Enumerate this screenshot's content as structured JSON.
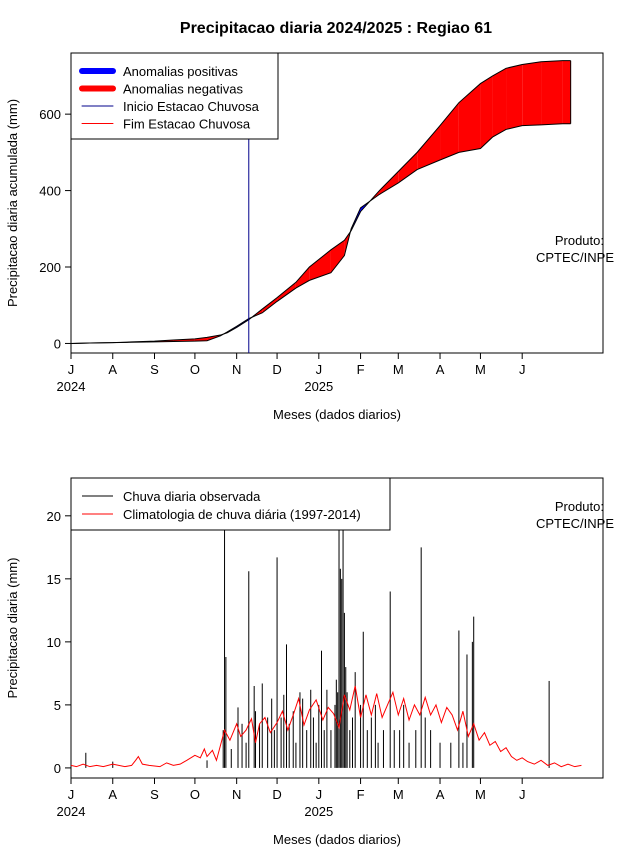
{
  "chart_data": [
    {
      "type": "area",
      "title": "Precipitacao diaria 2024/2025 : Regiao 61",
      "xlabel": "Meses (dados diarios)",
      "ylabel": "Precipitacao diaria acumulada (mm)",
      "x_range": [
        "2024-07-01",
        "2025-07-31"
      ],
      "ylim": [
        -25,
        760
      ],
      "yticks": [
        0,
        200,
        400,
        600
      ],
      "month_ticks": [
        "J",
        "A",
        "S",
        "O",
        "N",
        "D",
        "J",
        "F",
        "M",
        "A",
        "M",
        "J"
      ],
      "year_labels": [
        "2024",
        "2025"
      ],
      "legend": {
        "placement": "top-left",
        "entries": [
          "Anomalias positivas",
          "Anomalias negativas",
          "Inicio Estacao Chuvosa",
          "Fim Estacao Chuvosa"
        ]
      },
      "annotation": [
        "Produto:",
        "CPTEC/INPE"
      ],
      "colors": {
        "positive": "#0000ff",
        "negative": "#ff0000",
        "inicio": "#00008b",
        "fim": "#ff0000"
      },
      "inicio_estacao_chuvosa": "2024-11-10",
      "series": [
        {
          "name": "observed_accumulated",
          "points": [
            [
              "2024-07-01",
              0
            ],
            [
              "2024-07-15",
              1
            ],
            [
              "2024-08-01",
              2
            ],
            [
              "2024-08-15",
              3
            ],
            [
              "2024-09-01",
              4
            ],
            [
              "2024-09-15",
              5
            ],
            [
              "2024-10-01",
              6
            ],
            [
              "2024-10-10",
              7
            ],
            [
              "2024-10-20",
              20
            ],
            [
              "2024-10-25",
              30
            ],
            [
              "2024-11-01",
              45
            ],
            [
              "2024-11-10",
              65
            ],
            [
              "2024-11-20",
              80
            ],
            [
              "2024-12-01",
              110
            ],
            [
              "2024-12-15",
              145
            ],
            [
              "2024-12-25",
              165
            ],
            [
              "2025-01-10",
              185
            ],
            [
              "2025-01-20",
              230
            ],
            [
              "2025-01-25",
              300
            ],
            [
              "2025-02-01",
              355
            ],
            [
              "2025-02-15",
              390
            ],
            [
              "2025-03-01",
              420
            ],
            [
              "2025-03-15",
              455
            ],
            [
              "2025-04-01",
              480
            ],
            [
              "2025-04-15",
              500
            ],
            [
              "2025-05-01",
              510
            ],
            [
              "2025-05-10",
              540
            ],
            [
              "2025-05-20",
              560
            ],
            [
              "2025-06-01",
              570
            ],
            [
              "2025-06-15",
              572
            ],
            [
              "2025-07-01",
              575
            ],
            [
              "2025-07-07",
              575
            ]
          ]
        },
        {
          "name": "climatology_accumulated",
          "points": [
            [
              "2024-07-01",
              0
            ],
            [
              "2024-07-15",
              1
            ],
            [
              "2024-08-01",
              2
            ],
            [
              "2024-08-15",
              4
            ],
            [
              "2024-09-01",
              6
            ],
            [
              "2024-09-15",
              9
            ],
            [
              "2024-10-01",
              12
            ],
            [
              "2024-10-10",
              16
            ],
            [
              "2024-10-20",
              22
            ],
            [
              "2024-10-25",
              28
            ],
            [
              "2024-11-01",
              42
            ],
            [
              "2024-11-10",
              62
            ],
            [
              "2024-11-20",
              90
            ],
            [
              "2024-12-01",
              120
            ],
            [
              "2024-12-15",
              160
            ],
            [
              "2024-12-25",
              200
            ],
            [
              "2025-01-10",
              245
            ],
            [
              "2025-01-20",
              270
            ],
            [
              "2025-01-25",
              295
            ],
            [
              "2025-02-01",
              345
            ],
            [
              "2025-02-15",
              400
            ],
            [
              "2025-03-01",
              450
            ],
            [
              "2025-03-15",
              500
            ],
            [
              "2025-04-01",
              570
            ],
            [
              "2025-04-15",
              630
            ],
            [
              "2025-05-01",
              680
            ],
            [
              "2025-05-10",
              700
            ],
            [
              "2025-05-20",
              720
            ],
            [
              "2025-06-01",
              730
            ],
            [
              "2025-06-15",
              737
            ],
            [
              "2025-07-01",
              740
            ],
            [
              "2025-07-07",
              740
            ]
          ]
        }
      ]
    },
    {
      "type": "bar",
      "xlabel": "Meses (dados diarios)",
      "ylabel": "Precipitacao diaria (mm)",
      "x_range": [
        "2024-07-01",
        "2025-07-31"
      ],
      "ylim": [
        -0.8,
        23
      ],
      "yticks": [
        0,
        5,
        10,
        15,
        20
      ],
      "month_ticks": [
        "J",
        "A",
        "S",
        "O",
        "N",
        "D",
        "J",
        "F",
        "M",
        "A",
        "M",
        "J"
      ],
      "year_labels": [
        "2024",
        "2025"
      ],
      "legend": {
        "placement": "top-left",
        "entries": [
          "Chuva diaria observada",
          "Climatologia de chuva diária (1997-2014)"
        ]
      },
      "annotation": [
        "Produto:",
        "CPTEC/INPE"
      ],
      "colors": {
        "observed": "#000000",
        "climatology": "#ff0000"
      },
      "series": [
        {
          "name": "Chuva diaria observada",
          "bars": [
            [
              "2024-07-12",
              1.2
            ],
            [
              "2024-08-01",
              0.5
            ],
            [
              "2024-10-10",
              0.6
            ],
            [
              "2024-10-22",
              3
            ],
            [
              "2024-10-23",
              20
            ],
            [
              "2024-10-24",
              8.8
            ],
            [
              "2024-10-28",
              1.5
            ],
            [
              "2024-11-02",
              4.8
            ],
            [
              "2024-11-05",
              3.5
            ],
            [
              "2024-11-08",
              2
            ],
            [
              "2024-11-10",
              15.6
            ],
            [
              "2024-11-14",
              6.5
            ],
            [
              "2024-11-15",
              4.5
            ],
            [
              "2024-11-18",
              3.5
            ],
            [
              "2024-11-20",
              6.7
            ],
            [
              "2024-11-24",
              4
            ],
            [
              "2024-11-27",
              5.5
            ],
            [
              "2024-11-29",
              3
            ],
            [
              "2024-12-01",
              16.7
            ],
            [
              "2024-12-04",
              4
            ],
            [
              "2024-12-06",
              5.8
            ],
            [
              "2024-12-08",
              9.8
            ],
            [
              "2024-12-10",
              3.5
            ],
            [
              "2024-12-13",
              4.5
            ],
            [
              "2024-12-15",
              2
            ],
            [
              "2024-12-18",
              6
            ],
            [
              "2024-12-20",
              5.5
            ],
            [
              "2024-12-23",
              3
            ],
            [
              "2024-12-26",
              6.2
            ],
            [
              "2024-12-28",
              4
            ],
            [
              "2024-12-30",
              2
            ],
            [
              "2025-01-01",
              5
            ],
            [
              "2025-01-03",
              9.3
            ],
            [
              "2025-01-05",
              3
            ],
            [
              "2025-01-07",
              6.2
            ],
            [
              "2025-01-10",
              3
            ],
            [
              "2025-01-13",
              5
            ],
            [
              "2025-01-14",
              7
            ],
            [
              "2025-01-15",
              6
            ],
            [
              "2025-01-16",
              22
            ],
            [
              "2025-01-17",
              15.8
            ],
            [
              "2025-01-18",
              15
            ],
            [
              "2025-01-19",
              21
            ],
            [
              "2025-01-20",
              12.3
            ],
            [
              "2025-01-21",
              8
            ],
            [
              "2025-01-22",
              6
            ],
            [
              "2025-01-24",
              3
            ],
            [
              "2025-01-26",
              4
            ],
            [
              "2025-01-28",
              7.6
            ],
            [
              "2025-02-01",
              5
            ],
            [
              "2025-02-03",
              10.8
            ],
            [
              "2025-02-06",
              3
            ],
            [
              "2025-02-09",
              4
            ],
            [
              "2025-02-12",
              5
            ],
            [
              "2025-02-14",
              2
            ],
            [
              "2025-02-18",
              3
            ],
            [
              "2025-02-23",
              14
            ],
            [
              "2025-02-26",
              3
            ],
            [
              "2025-03-02",
              3
            ],
            [
              "2025-03-05",
              5
            ],
            [
              "2025-03-09",
              2
            ],
            [
              "2025-03-14",
              3
            ],
            [
              "2025-03-18",
              17.5
            ],
            [
              "2025-03-21",
              4
            ],
            [
              "2025-03-25",
              3
            ],
            [
              "2025-04-01",
              2
            ],
            [
              "2025-04-09",
              2
            ],
            [
              "2025-04-15",
              10.9
            ],
            [
              "2025-04-18",
              2
            ],
            [
              "2025-04-21",
              9
            ],
            [
              "2025-04-25",
              10
            ],
            [
              "2025-04-26",
              12
            ],
            [
              "2025-06-21",
              6.9
            ]
          ]
        },
        {
          "name": "Climatologia de chuva diária (1997-2014)",
          "points": [
            [
              "2024-07-01",
              0.2
            ],
            [
              "2024-07-05",
              0.1
            ],
            [
              "2024-07-10",
              0.3
            ],
            [
              "2024-07-15",
              0.1
            ],
            [
              "2024-07-20",
              0.2
            ],
            [
              "2024-07-25",
              0.1
            ],
            [
              "2024-08-01",
              0.3
            ],
            [
              "2024-08-10",
              0.1
            ],
            [
              "2024-08-15",
              0.2
            ],
            [
              "2024-08-18",
              0.6
            ],
            [
              "2024-08-20",
              0.9
            ],
            [
              "2024-08-23",
              0.3
            ],
            [
              "2024-08-28",
              0.2
            ],
            [
              "2024-09-05",
              0.1
            ],
            [
              "2024-09-10",
              0.4
            ],
            [
              "2024-09-15",
              0.2
            ],
            [
              "2024-09-20",
              0.3
            ],
            [
              "2024-09-25",
              0.6
            ],
            [
              "2024-10-01",
              1
            ],
            [
              "2024-10-05",
              0.8
            ],
            [
              "2024-10-08",
              1.5
            ],
            [
              "2024-10-10",
              0.9
            ],
            [
              "2024-10-14",
              1.4
            ],
            [
              "2024-10-17",
              0.6
            ],
            [
              "2024-10-20",
              1.8
            ],
            [
              "2024-10-23",
              3
            ],
            [
              "2024-10-27",
              2.2
            ],
            [
              "2024-11-01",
              3.5
            ],
            [
              "2024-11-04",
              2.5
            ],
            [
              "2024-11-08",
              3
            ],
            [
              "2024-11-12",
              3.9
            ],
            [
              "2024-11-15",
              2
            ],
            [
              "2024-11-18",
              3.5
            ],
            [
              "2024-11-22",
              4
            ],
            [
              "2024-11-26",
              2.8
            ],
            [
              "2024-12-01",
              3.6
            ],
            [
              "2024-12-05",
              4.5
            ],
            [
              "2024-12-09",
              3
            ],
            [
              "2024-12-13",
              4.2
            ],
            [
              "2024-12-17",
              5.5
            ],
            [
              "2024-12-21",
              3.4
            ],
            [
              "2024-12-25",
              4.6
            ],
            [
              "2024-12-30",
              5.4
            ],
            [
              "2025-01-04",
              3.8
            ],
            [
              "2025-01-08",
              4.8
            ],
            [
              "2025-01-12",
              4.3
            ],
            [
              "2025-01-16",
              3.2
            ],
            [
              "2025-01-20",
              5.8
            ],
            [
              "2025-01-24",
              4.6
            ],
            [
              "2025-01-28",
              6.5
            ],
            [
              "2025-02-01",
              4
            ],
            [
              "2025-02-05",
              5.8
            ],
            [
              "2025-02-09",
              4.2
            ],
            [
              "2025-02-13",
              5.9
            ],
            [
              "2025-02-17",
              4
            ],
            [
              "2025-02-21",
              5
            ],
            [
              "2025-02-25",
              6
            ],
            [
              "2025-03-01",
              4.2
            ],
            [
              "2025-03-05",
              5.5
            ],
            [
              "2025-03-09",
              3.8
            ],
            [
              "2025-03-13",
              5
            ],
            [
              "2025-03-17",
              4.2
            ],
            [
              "2025-03-21",
              5.6
            ],
            [
              "2025-03-25",
              4.2
            ],
            [
              "2025-03-29",
              5
            ],
            [
              "2025-04-02",
              3.6
            ],
            [
              "2025-04-06",
              4.8
            ],
            [
              "2025-04-10",
              4.2
            ],
            [
              "2025-04-14",
              3
            ],
            [
              "2025-04-18",
              4.5
            ],
            [
              "2025-04-22",
              2.5
            ],
            [
              "2025-04-26",
              3.5
            ],
            [
              "2025-04-30",
              2.2
            ],
            [
              "2025-05-04",
              2.8
            ],
            [
              "2025-05-08",
              1.8
            ],
            [
              "2025-05-12",
              2.1
            ],
            [
              "2025-05-16",
              1.3
            ],
            [
              "2025-05-20",
              1.6
            ],
            [
              "2025-05-24",
              0.9
            ],
            [
              "2025-05-28",
              0.6
            ],
            [
              "2025-06-01",
              0.8
            ],
            [
              "2025-06-05",
              0.5
            ],
            [
              "2025-06-10",
              0.3
            ],
            [
              "2025-06-15",
              0.6
            ],
            [
              "2025-06-20",
              0.2
            ],
            [
              "2025-06-25",
              0.4
            ],
            [
              "2025-06-30",
              0.1
            ],
            [
              "2025-07-05",
              0.3
            ],
            [
              "2025-07-10",
              0.1
            ],
            [
              "2025-07-15",
              0.2
            ]
          ]
        }
      ]
    }
  ]
}
